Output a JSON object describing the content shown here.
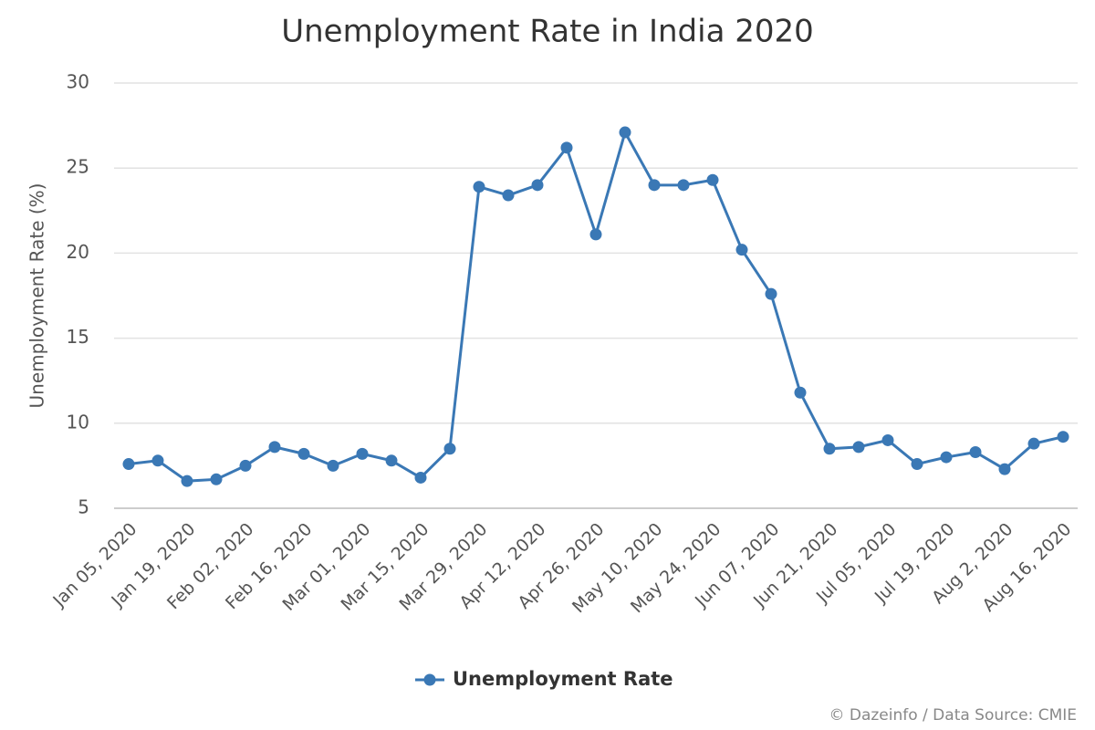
{
  "chart_data": {
    "type": "line",
    "title": "Unemployment Rate in India 2020",
    "y_label": "Unemployment Rate (%)",
    "categories": [
      "Jan 05, 2020",
      null,
      "Jan 19, 2020",
      null,
      "Feb 02, 2020",
      null,
      "Feb 16, 2020",
      null,
      "Mar 01, 2020",
      null,
      "Mar 15, 2020",
      null,
      "Mar 29, 2020",
      null,
      "Apr 12, 2020",
      null,
      "Apr 26, 2020",
      null,
      "May 10, 2020",
      null,
      "May 24, 2020",
      null,
      "Jun 07, 2020",
      null,
      "Jun 21, 2020",
      null,
      "Jul 05, 2020",
      null,
      "Jul 19, 2020",
      null,
      "Aug 2, 2020",
      null,
      "Aug 16, 2020"
    ],
    "series": [
      {
        "name": "Unemployment Rate",
        "color": "#3a78b5",
        "values": [
          7.6,
          7.8,
          6.6,
          6.7,
          7.5,
          8.6,
          8.2,
          7.5,
          8.2,
          7.8,
          6.8,
          8.5,
          23.9,
          23.4,
          24.0,
          26.2,
          21.1,
          27.1,
          24.0,
          24.0,
          24.3,
          20.2,
          17.6,
          11.8,
          8.5,
          8.6,
          9.0,
          7.6,
          8.0,
          8.3,
          7.3,
          8.8,
          9.2
        ]
      }
    ],
    "ylim": [
      5,
      30
    ],
    "yticks": [
      5,
      10,
      15,
      20,
      25,
      30
    ],
    "grid": true,
    "legend": "bottom",
    "credit": "© Dazeinfo / Data Source: CMIE"
  }
}
